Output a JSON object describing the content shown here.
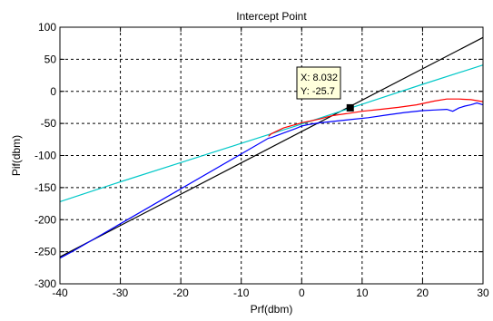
{
  "chart_data": {
    "type": "line",
    "title": "Intercept Point",
    "xlabel": "Prf(dbm)",
    "ylabel": "Pif(dbm)",
    "xlim": [
      -40,
      30
    ],
    "ylim": [
      -300,
      100
    ],
    "xticks": [
      -40,
      -30,
      -20,
      -10,
      0,
      10,
      20,
      30
    ],
    "yticks": [
      -300,
      -250,
      -200,
      -150,
      -100,
      -50,
      0,
      50,
      100
    ],
    "grid": true,
    "series": [
      {
        "color": "#000000",
        "x": [
          -40,
          30
        ],
        "y": [
          -258,
          84
        ]
      },
      {
        "color": "#00c8c8",
        "x": [
          -40,
          -30,
          -20,
          -10,
          0,
          10,
          20,
          30
        ],
        "y": [
          -172,
          -141,
          -111,
          -81,
          -51,
          -20,
          11,
          41
        ]
      },
      {
        "color": "#ff0000",
        "x": [
          -5.5,
          -5,
          -3,
          0,
          3,
          5,
          8,
          10,
          13,
          16,
          19,
          22,
          24,
          26,
          28,
          30
        ],
        "y": [
          -70,
          -66,
          -57,
          -49,
          -43,
          -38,
          -34,
          -31,
          -28,
          -25,
          -21,
          -15,
          -12,
          -12,
          -13,
          -16
        ]
      },
      {
        "color": "#0000ff",
        "x": [
          -40,
          -38,
          -5.5,
          -5,
          -3,
          -1,
          0,
          1,
          3,
          5,
          8,
          11,
          14,
          17,
          20,
          22,
          24,
          25,
          26,
          27,
          28,
          29,
          30
        ],
        "y": [
          -260,
          -250,
          -73,
          -72,
          -65,
          -58,
          -54,
          -52,
          -49,
          -47,
          -44,
          -41,
          -37,
          -33,
          -30,
          -29,
          -28,
          -31,
          -26,
          -23,
          -21,
          -18,
          -21
        ]
      }
    ],
    "datatip": {
      "x": 8.032,
      "y": -25.7,
      "label_x": "X: 8.032",
      "label_y": "Y: -25.7"
    }
  }
}
